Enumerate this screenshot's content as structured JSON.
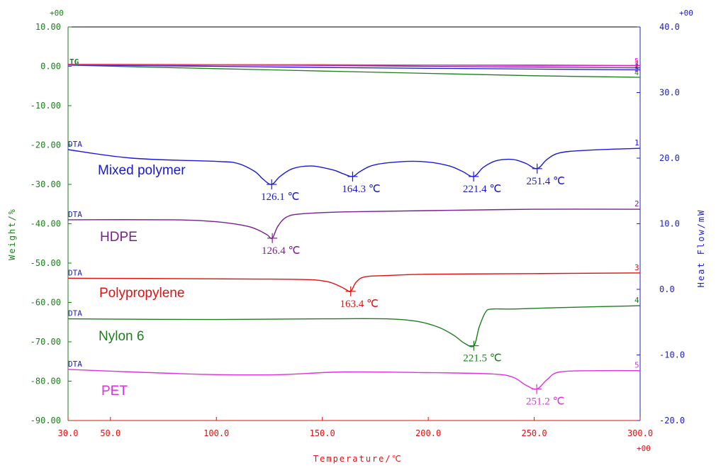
{
  "chart_data": {
    "type": "line",
    "xlabel": "Temperature/℃",
    "ylabel_left": "Weight/%",
    "ylabel_right": "Heat Flow/mW",
    "xlim": [
      30,
      300
    ],
    "ylim_left": [
      -90,
      10
    ],
    "ylim_right": [
      -20,
      40
    ],
    "exp_labels": {
      "left_top": "+00",
      "right_top": "+00",
      "x_right": "+00"
    },
    "x_ticks": [
      "30.0",
      "50.0",
      "100.0",
      "150.0",
      "200.0",
      "250.0",
      "300.0"
    ],
    "y_left_ticks": [
      "10.00",
      "0.00",
      "-10.00",
      "-20.00",
      "-30.00",
      "-40.00",
      "-50.00",
      "-60.00",
      "-70.00",
      "-80.00",
      "-90.00"
    ],
    "y_right_ticks": [
      "40.0",
      "30.0",
      "20.0",
      "10.0",
      "0.0",
      "-10.0",
      "-20.0"
    ],
    "grid": false,
    "tg_label": "TG",
    "tg_curves": [
      {
        "id": "4",
        "color": "#1e7d1e",
        "x": [
          30,
          60,
          100,
          150,
          200,
          250,
          300
        ],
        "y": [
          0.3,
          -0.1,
          -0.6,
          -1.2,
          -1.8,
          -2.4,
          -2.8
        ]
      },
      {
        "id": "1",
        "color": "#1a1adb",
        "x": [
          30,
          100,
          150,
          200,
          250,
          300
        ],
        "y": [
          0.3,
          0.0,
          -0.3,
          -0.5,
          -0.7,
          -0.9
        ]
      },
      {
        "id": "2",
        "color": "#7a1f8f",
        "x": [
          30,
          100,
          150,
          200,
          250,
          300
        ],
        "y": [
          0.4,
          0.3,
          0.2,
          0.0,
          -0.2,
          -0.4
        ]
      },
      {
        "id": "3",
        "color": "#e01010",
        "x": [
          30,
          100,
          150,
          200,
          250,
          300
        ],
        "y": [
          0.5,
          0.4,
          0.4,
          0.3,
          0.3,
          0.2
        ]
      },
      {
        "id": "5",
        "color": "#e030e0",
        "x": [
          30,
          100,
          150,
          200,
          250,
          300
        ],
        "y": [
          0.4,
          0.3,
          0.3,
          0.3,
          0.2,
          0.1
        ]
      }
    ],
    "series": [
      {
        "id": "1",
        "name": "Mixed polymer",
        "color": "#1a1adb",
        "label_color": "#1a1acc",
        "x": [
          30,
          60,
          100,
          110,
          118,
          122,
          126.1,
          130,
          136,
          145,
          155,
          160,
          164.3,
          168,
          175,
          190,
          200,
          210,
          216,
          221.4,
          226,
          232,
          240,
          246,
          251.4,
          256,
          262,
          275,
          300
        ],
        "y": [
          21.3,
          20.0,
          19.5,
          19.2,
          18.0,
          16.8,
          16.0,
          17.2,
          18.4,
          18.8,
          18.2,
          17.6,
          17.2,
          18.0,
          19.0,
          19.5,
          19.4,
          18.8,
          18.0,
          17.2,
          18.6,
          19.6,
          19.8,
          19.2,
          18.4,
          19.8,
          20.8,
          21.2,
          21.5
        ],
        "peaks": [
          {
            "x": 126.1,
            "y": 16.0,
            "label": "126.1 ℃"
          },
          {
            "x": 164.3,
            "y": 17.2,
            "label": "164.3 ℃"
          },
          {
            "x": 221.4,
            "y": 17.2,
            "label": "221.4 ℃"
          },
          {
            "x": 251.4,
            "y": 18.4,
            "label": "251.4 ℃"
          }
        ]
      },
      {
        "id": "2",
        "name": "HDPE",
        "color": "#7a1f8f",
        "label_color": "#7a1f8f",
        "x": [
          30,
          80,
          100,
          110,
          116,
          120,
          124,
          126.4,
          129,
          133,
          140,
          160,
          200,
          250,
          300
        ],
        "y": [
          10.6,
          10.6,
          10.3,
          9.9,
          9.5,
          9.0,
          8.3,
          7.8,
          9.6,
          11.0,
          11.5,
          11.8,
          12.0,
          12.2,
          12.2
        ],
        "peaks": [
          {
            "x": 126.4,
            "y": 7.8,
            "label": "126.4 ℃"
          }
        ]
      },
      {
        "id": "3",
        "name": "Polypropylene",
        "color": "#e01010",
        "label_color": "#e01010",
        "x": [
          30,
          100,
          140,
          152,
          158,
          161,
          163.4,
          166,
          170,
          180,
          200,
          250,
          300
        ],
        "y": [
          1.7,
          1.6,
          1.5,
          1.2,
          0.5,
          0.0,
          -0.3,
          1.1,
          1.9,
          2.1,
          2.3,
          2.4,
          2.5
        ],
        "peaks": [
          {
            "x": 163.4,
            "y": -0.3,
            "label": "163.4 ℃"
          }
        ]
      },
      {
        "id": "4",
        "name": "Nylon 6",
        "color": "#1e7d1e",
        "label_color": "#1e7d1e",
        "x": [
          30,
          100,
          150,
          180,
          195,
          205,
          212,
          217,
          221.5,
          224,
          227,
          230,
          240,
          260,
          300
        ],
        "y": [
          -4.5,
          -4.6,
          -4.5,
          -4.5,
          -4.9,
          -5.8,
          -7.0,
          -8.2,
          -8.6,
          -5.8,
          -3.5,
          -3.0,
          -3.0,
          -2.8,
          -2.5
        ],
        "peaks": [
          {
            "x": 221.5,
            "y": -8.6,
            "label": "221.5 ℃"
          }
        ]
      },
      {
        "id": "5",
        "name": "PET",
        "color": "#e030e0",
        "label_color": "#e030e0",
        "x": [
          30,
          60,
          100,
          130,
          160,
          200,
          230,
          240,
          246,
          251.2,
          256,
          262,
          280,
          300
        ],
        "y": [
          -12.2,
          -12.6,
          -13.0,
          -13.0,
          -12.6,
          -12.7,
          -12.9,
          -13.4,
          -14.6,
          -15.2,
          -13.8,
          -12.6,
          -12.4,
          -12.4
        ],
        "peaks": [
          {
            "x": 251.2,
            "y": -15.2,
            "label": "251.2 ℃"
          }
        ]
      }
    ],
    "dta_tag": "DTA"
  }
}
